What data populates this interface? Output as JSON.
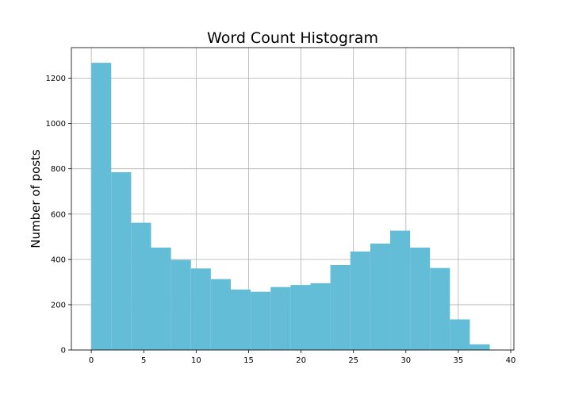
{
  "chart_data": {
    "type": "bar",
    "subtype": "histogram",
    "title": "Word Count Histogram",
    "xlabel": "",
    "ylabel": "Number of posts",
    "bin_width": 1.9,
    "bins": [
      {
        "x_start": 0.0,
        "x_end": 1.9,
        "count": 1268
      },
      {
        "x_start": 1.9,
        "x_end": 3.8,
        "count": 785
      },
      {
        "x_start": 3.8,
        "x_end": 5.7,
        "count": 562
      },
      {
        "x_start": 5.7,
        "x_end": 7.6,
        "count": 452
      },
      {
        "x_start": 7.6,
        "x_end": 9.5,
        "count": 398
      },
      {
        "x_start": 9.5,
        "x_end": 11.4,
        "count": 360
      },
      {
        "x_start": 11.4,
        "x_end": 13.3,
        "count": 313
      },
      {
        "x_start": 13.3,
        "x_end": 15.2,
        "count": 267
      },
      {
        "x_start": 15.2,
        "x_end": 17.1,
        "count": 257
      },
      {
        "x_start": 17.1,
        "x_end": 19.0,
        "count": 278
      },
      {
        "x_start": 19.0,
        "x_end": 20.9,
        "count": 287
      },
      {
        "x_start": 20.9,
        "x_end": 22.8,
        "count": 295
      },
      {
        "x_start": 22.8,
        "x_end": 24.7,
        "count": 375
      },
      {
        "x_start": 24.7,
        "x_end": 26.6,
        "count": 435
      },
      {
        "x_start": 26.6,
        "x_end": 28.5,
        "count": 470
      },
      {
        "x_start": 28.5,
        "x_end": 30.4,
        "count": 527
      },
      {
        "x_start": 30.4,
        "x_end": 32.3,
        "count": 452
      },
      {
        "x_start": 32.3,
        "x_end": 34.2,
        "count": 362
      },
      {
        "x_start": 34.2,
        "x_end": 36.1,
        "count": 135
      },
      {
        "x_start": 36.1,
        "x_end": 38.0,
        "count": 25
      }
    ],
    "x_ticks": [
      0,
      5,
      10,
      15,
      20,
      25,
      30,
      35,
      40
    ],
    "y_ticks": [
      0,
      200,
      400,
      600,
      800,
      1000,
      1200
    ],
    "xlim": [
      -1.9,
      40.3
    ],
    "ylim": [
      0,
      1335
    ],
    "grid": true,
    "bar_color": "#63bdd6",
    "legend": "none"
  }
}
